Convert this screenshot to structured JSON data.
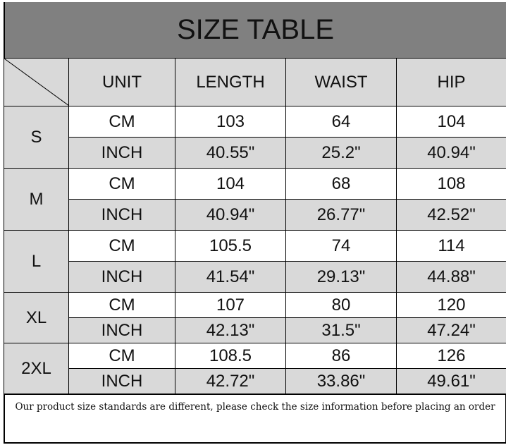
{
  "title": "SIZE TABLE",
  "headers": [
    "UNIT",
    "LENGTH",
    "WAIST",
    "HIP"
  ],
  "sizes": [
    {
      "size": "S",
      "cm": {
        "unit": "CM",
        "length": "103",
        "waist": "64",
        "hip": "104"
      },
      "inch": {
        "unit": "INCH",
        "length": "40.55\"",
        "waist": "25.2\"",
        "hip": "40.94\""
      }
    },
    {
      "size": "M",
      "cm": {
        "unit": "CM",
        "length": "104",
        "waist": "68",
        "hip": "108"
      },
      "inch": {
        "unit": "INCH",
        "length": "40.94\"",
        "waist": "26.77\"",
        "hip": "42.52\""
      }
    },
    {
      "size": "L",
      "cm": {
        "unit": "CM",
        "length": "105.5",
        "waist": "74",
        "hip": "114"
      },
      "inch": {
        "unit": "INCH",
        "length": "41.54\"",
        "waist": "29.13\"",
        "hip": "44.88\""
      }
    },
    {
      "size": "XL",
      "cm": {
        "unit": "CM",
        "length": "107",
        "waist": "80",
        "hip": "120"
      },
      "inch": {
        "unit": "INCH",
        "length": "42.13\"",
        "waist": "31.5\"",
        "hip": "47.24\""
      }
    },
    {
      "size": "2XL",
      "cm": {
        "unit": "CM",
        "length": "108.5",
        "waist": "86",
        "hip": "126"
      },
      "inch": {
        "unit": "INCH",
        "length": "42.72\"",
        "waist": "33.86\"",
        "hip": "49.61\""
      }
    }
  ],
  "footer_note": "Our product size standards are different, please check the size information before placing an order",
  "colors": {
    "title_bg": "#808080",
    "header_bg": "#d9d9d9"
  }
}
